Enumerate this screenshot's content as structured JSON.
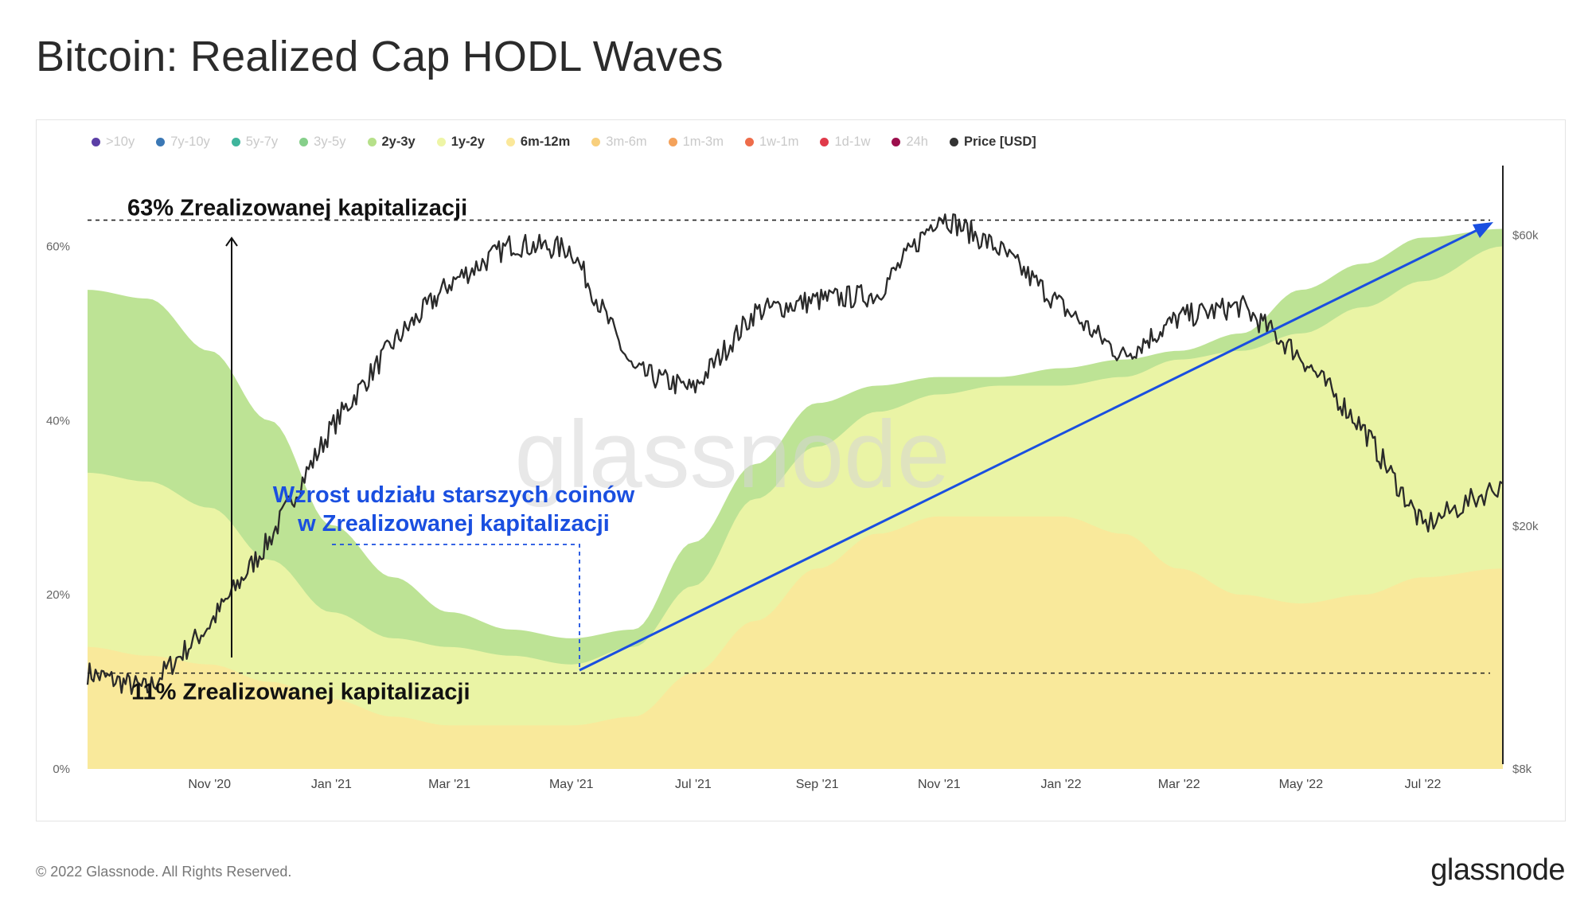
{
  "title": "Bitcoin: Realized Cap HODL Waves",
  "footer": "© 2022 Glassnode. All Rights Reserved.",
  "brand": "glassnode",
  "watermark": "glassnode",
  "legend": [
    {
      "label": ">10y",
      "color": "#5b3fa6",
      "active": false
    },
    {
      "label": "7y-10y",
      "color": "#3b78b5",
      "active": false
    },
    {
      "label": "5y-7y",
      "color": "#3fb59c",
      "active": false
    },
    {
      "label": "3y-5y",
      "color": "#86cf8a",
      "active": false
    },
    {
      "label": "2y-3y",
      "color": "#b6e08a",
      "active": true
    },
    {
      "label": "1y-2y",
      "color": "#eef5a6",
      "active": true
    },
    {
      "label": "6m-12m",
      "color": "#fbe89a",
      "active": true
    },
    {
      "label": "3m-6m",
      "color": "#f8cf7c",
      "active": false
    },
    {
      "label": "1m-3m",
      "color": "#f4a25b",
      "active": false
    },
    {
      "label": "1w-1m",
      "color": "#ee6c4a",
      "active": false
    },
    {
      "label": "1d-1w",
      "color": "#e03a4a",
      "active": false
    },
    {
      "label": "24h",
      "color": "#9c0f4d",
      "active": false
    },
    {
      "label": "Price [USD]",
      "color": "#333333",
      "active": true
    }
  ],
  "annotations": {
    "top_label": "63% Zrealizowanej kapitalizacji",
    "bottom_label": "11% Zrealizowanej kapitalizacji",
    "arrow_label_line1": "Wzrost udziału starszych coinów",
    "arrow_label_line2": "w Zrealizowanej kapitalizacji",
    "arrow_color": "#1a4fe0"
  },
  "chart_data": {
    "type": "area",
    "title": "Bitcoin: Realized Cap HODL Waves",
    "x_range": [
      "2020-09-01",
      "2022-08-10"
    ],
    "x_ticks": [
      "Nov '20",
      "Jan '21",
      "Mar '21",
      "May '21",
      "Jul '21",
      "Sep '21",
      "Nov '21",
      "Jan '22",
      "Mar '22",
      "May '22",
      "Jul '22"
    ],
    "y_left": {
      "ticks": [
        "0%",
        "20%",
        "40%",
        "60%"
      ],
      "range": [
        0,
        70
      ]
    },
    "y_right": {
      "ticks": [
        "$8k",
        "$20k",
        "$60k"
      ],
      "scale": "log",
      "range": [
        8000,
        80000
      ]
    },
    "x": [
      "2020-09-01",
      "2020-10-01",
      "2020-11-01",
      "2020-12-01",
      "2021-01-01",
      "2021-02-01",
      "2021-03-01",
      "2021-04-01",
      "2021-05-01",
      "2021-06-01",
      "2021-07-01",
      "2021-08-01",
      "2021-09-01",
      "2021-10-01",
      "2021-11-01",
      "2021-12-01",
      "2022-01-01",
      "2022-02-01",
      "2022-03-01",
      "2022-04-01",
      "2022-05-01",
      "2022-06-01",
      "2022-07-01",
      "2022-08-10"
    ],
    "series": [
      {
        "name": "6m-12m",
        "values": [
          14,
          13,
          12,
          10,
          8,
          6,
          5,
          5,
          5,
          6,
          11,
          17,
          23,
          27,
          29,
          29,
          29,
          27,
          23,
          20,
          19,
          20,
          22,
          23
        ]
      },
      {
        "name": "1y-2y",
        "values": [
          34,
          33,
          30,
          24,
          18,
          15,
          14,
          13,
          12,
          14,
          21,
          31,
          37,
          41,
          43,
          44,
          44,
          45,
          47,
          48,
          50,
          53,
          56,
          60
        ]
      },
      {
        "name": "2y-3y",
        "values": [
          55,
          54,
          48,
          40,
          28,
          22,
          18,
          16,
          15,
          16,
          26,
          35,
          42,
          44,
          45,
          45,
          46,
          47,
          48,
          50,
          55,
          58,
          61,
          62
        ]
      },
      {
        "name": "Price [USD]",
        "values": [
          11500,
          10800,
          13800,
          19000,
          29000,
          40000,
          50000,
          58000,
          57000,
          36000,
          33500,
          45000,
          47000,
          48000,
          65000,
          57000,
          46000,
          38000,
          44000,
          46000,
          38000,
          29000,
          20000,
          23500
        ]
      }
    ],
    "reference_lines": [
      {
        "label": "63% Zrealizowanej kapitalizacji",
        "value": 63
      },
      {
        "label": "11% Zrealizowanej kapitalizacji",
        "value": 11
      }
    ],
    "grid": false,
    "legend_position": "top"
  }
}
